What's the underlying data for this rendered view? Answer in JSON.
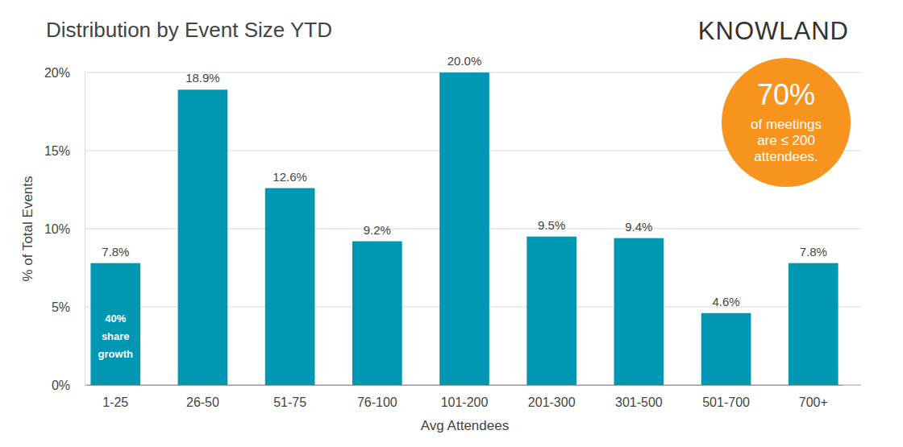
{
  "chart_data": {
    "type": "bar",
    "title": "Distribution by Event Size YTD",
    "logo": "KNOWLAND",
    "x_label": "Avg Attendees",
    "y_label": "% of Total Events",
    "categories": [
      "1-25",
      "26-50",
      "51-75",
      "76-100",
      "101-200",
      "201-300",
      "301-500",
      "501-700",
      "700+"
    ],
    "values": [
      7.8,
      18.9,
      12.6,
      9.2,
      20.0,
      9.5,
      9.4,
      4.6,
      7.8
    ],
    "value_labels": [
      "7.8%",
      "18.9%",
      "12.6%",
      "9.2%",
      "20.0%",
      "9.5%",
      "9.4%",
      "4.6%",
      "7.8%"
    ],
    "color": "#0097b2",
    "ylim": [
      0,
      20
    ],
    "yticks": [
      {
        "value": 0,
        "label": "0%"
      },
      {
        "value": 5,
        "label": "5%"
      },
      {
        "value": 10,
        "label": "10%"
      },
      {
        "value": 15,
        "label": "15%"
      },
      {
        "value": 20,
        "label": "20%"
      }
    ],
    "grid": true,
    "data_labels": true,
    "annotations": [
      [
        "70%",
        "of meetings",
        "are ≤ 200",
        "attendees."
      ],
      [
        "40%",
        "share",
        "growth"
      ]
    ]
  }
}
